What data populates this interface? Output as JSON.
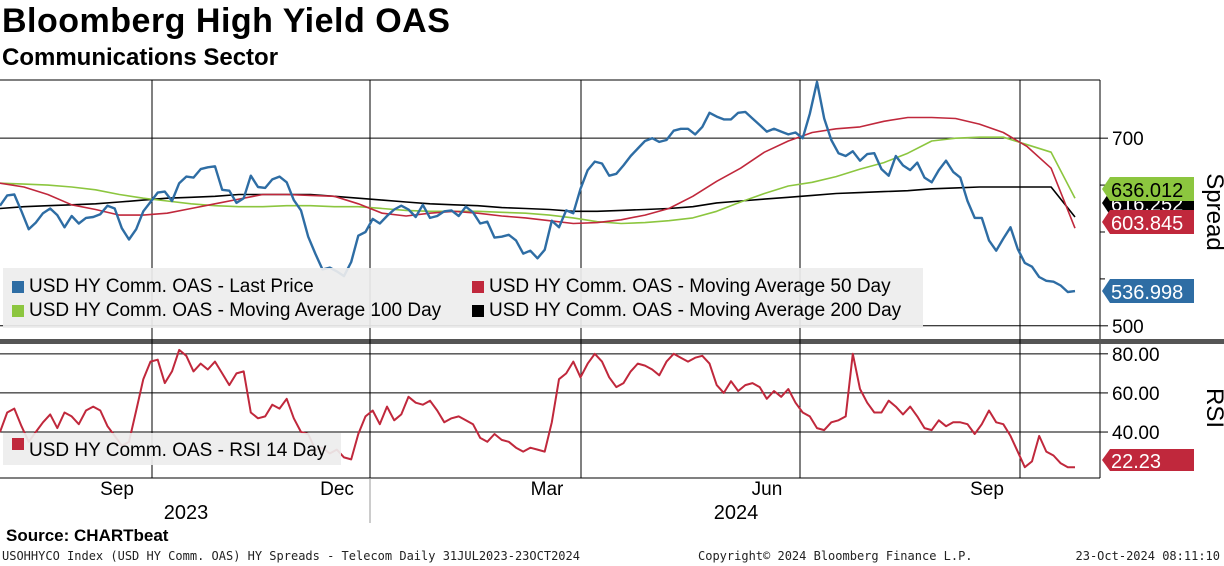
{
  "header": {
    "title": "Bloomberg High Yield OAS",
    "subtitle": "Communications Sector"
  },
  "footer": {
    "source": "Source: CHARTbeat",
    "ticker_line": "USOHHYCO Index (USD HY Comm. OAS) HY Spreads - Telecom  Daily 31JUL2023-23OCT2024",
    "copyright": "Copyright© 2024 Bloomberg Finance L.P.",
    "timestamp": "23-Oct-2024 08:11:10"
  },
  "colors": {
    "last_price": "#2e6da4",
    "ma50": "#c0283c",
    "ma100": "#8cc63f",
    "ma200": "#000000",
    "rsi": "#c0283c"
  },
  "chart_data": [
    {
      "type": "line",
      "panel": "Spread",
      "ylabel": "Spread",
      "ylim": [
        487,
        762
      ],
      "yticks": [
        500,
        700
      ],
      "ytick_labels": [
        "500",
        "700"
      ],
      "x_range": [
        "2023-07-31",
        "2024-10-23"
      ],
      "x_ticks": [
        "Sep",
        "Dec",
        "Mar",
        "Jun",
        "Sep"
      ],
      "year_labels": [
        "2023",
        "2024"
      ],
      "value_tags": [
        {
          "series": "ma100",
          "text": "636.012",
          "value": 636.012
        },
        {
          "series": "ma200",
          "text": "616.252",
          "value": 616.252
        },
        {
          "series": "ma50",
          "text": "603.845",
          "value": 603.845
        },
        {
          "series": "last_price",
          "text": "536.998",
          "value": 536.998
        }
      ],
      "legend": [
        {
          "series": "last_price",
          "label": "USD HY Comm. OAS - Last Price"
        },
        {
          "series": "ma50",
          "label": "USD HY Comm. OAS - Moving Average 50 Day"
        },
        {
          "series": "ma100",
          "label": "USD HY Comm. OAS - Moving Average 100 Day"
        },
        {
          "series": "ma200",
          "label": "USD HY Comm. OAS - Moving Average 200 Day"
        }
      ],
      "series": [
        {
          "name": "last_price",
          "x": [
            0,
            3,
            6,
            9,
            12,
            15,
            18,
            21,
            24,
            27,
            30,
            33,
            36,
            39,
            42,
            45,
            48,
            51,
            54,
            57,
            60,
            63,
            66,
            69,
            72,
            75,
            78,
            81,
            84,
            87,
            90,
            93,
            96,
            99,
            102,
            105,
            108,
            111,
            114,
            117,
            120,
            123,
            126,
            129,
            132,
            135,
            138,
            141,
            144,
            147,
            150,
            153,
            156,
            159,
            162,
            165,
            168,
            171,
            174,
            177,
            180,
            183,
            186,
            189,
            192,
            195,
            198,
            201,
            204,
            207,
            210,
            213,
            216,
            219,
            222,
            225,
            228,
            231,
            234,
            237,
            240,
            243,
            246,
            249,
            252,
            255,
            258,
            261,
            264,
            267,
            270,
            273,
            276,
            279,
            282,
            285,
            288,
            291,
            294,
            297,
            300,
            303,
            306,
            309,
            312,
            315,
            318,
            321,
            324,
            327,
            330,
            333,
            336,
            339,
            342,
            345,
            348,
            351,
            354,
            357,
            360,
            363,
            366,
            369,
            372,
            375,
            378,
            381,
            384,
            387,
            390,
            393,
            396,
            399,
            402,
            405,
            408,
            411,
            414,
            417,
            420,
            423,
            426,
            429,
            432,
            435,
            438,
            441,
            444,
            447,
            450
          ],
          "values": [
            628,
            639,
            640,
            622,
            603,
            610,
            620,
            625,
            618,
            605,
            617,
            609,
            615,
            616,
            619,
            628,
            625,
            604,
            592,
            603,
            622,
            632,
            642,
            643,
            633,
            652,
            659,
            658,
            667,
            669,
            670,
            645,
            644,
            631,
            636,
            660,
            648,
            647,
            656,
            659,
            653,
            634,
            623,
            595,
            577,
            560,
            562,
            558,
            553,
            568,
            596,
            600,
            614,
            609,
            617,
            624,
            628,
            624,
            616,
            629,
            615,
            617,
            622,
            623,
            617,
            627,
            621,
            609,
            611,
            594,
            595,
            597,
            591,
            577,
            580,
            572,
            581,
            612,
            605,
            623,
            620,
            646,
            666,
            675,
            673,
            660,
            662,
            671,
            681,
            689,
            697,
            700,
            696,
            698,
            708,
            710,
            710,
            704,
            712,
            727,
            723,
            720,
            720,
            727,
            728,
            721,
            714,
            707,
            710,
            707,
            704,
            706,
            700,
            726,
            760,
            721,
            698,
            684,
            681,
            686,
            676,
            683,
            684,
            667,
            660,
            681,
            671,
            666,
            674,
            658,
            653,
            666,
            676,
            664,
            658,
            633,
            615,
            615,
            591,
            580,
            593,
            605,
            582,
            567,
            563,
            552,
            548,
            547,
            543,
            536,
            537
          ]
        },
        {
          "name": "ma50",
          "x": [
            0,
            10,
            20,
            30,
            40,
            50,
            60,
            70,
            80,
            90,
            100,
            110,
            120,
            130,
            140,
            150,
            160,
            170,
            180,
            190,
            200,
            210,
            220,
            230,
            240,
            250,
            260,
            270,
            280,
            290,
            300,
            310,
            320,
            330,
            340,
            350,
            360,
            370,
            380,
            390,
            400,
            410,
            420,
            430,
            440,
            450
          ],
          "values": [
            652,
            648,
            640,
            629,
            624,
            618,
            618,
            620,
            625,
            630,
            635,
            640,
            640,
            639,
            638,
            630,
            620,
            617,
            620,
            622,
            620,
            617,
            615,
            612,
            609,
            610,
            613,
            618,
            625,
            638,
            654,
            668,
            685,
            697,
            706,
            710,
            712,
            718,
            722,
            722,
            721,
            715,
            706,
            691,
            668,
            604
          ]
        },
        {
          "name": "ma100",
          "x": [
            0,
            10,
            20,
            30,
            40,
            50,
            60,
            70,
            80,
            90,
            100,
            110,
            120,
            130,
            140,
            150,
            160,
            170,
            180,
            190,
            200,
            210,
            220,
            230,
            240,
            250,
            260,
            270,
            280,
            290,
            300,
            310,
            320,
            330,
            340,
            350,
            360,
            370,
            380,
            390,
            400,
            410,
            420,
            430,
            440,
            450
          ],
          "values": [
            652,
            651,
            650,
            648,
            645,
            640,
            636,
            633,
            630,
            628,
            627,
            627,
            628,
            628,
            627,
            627,
            625,
            623,
            622,
            622,
            622,
            621,
            620,
            618,
            615,
            611,
            609,
            610,
            612,
            615,
            622,
            632,
            641,
            649,
            653,
            659,
            667,
            674,
            684,
            697,
            700,
            701,
            701,
            693,
            685,
            636
          ]
        },
        {
          "name": "ma200",
          "x": [
            0,
            10,
            20,
            30,
            40,
            50,
            60,
            70,
            80,
            90,
            100,
            110,
            120,
            130,
            140,
            150,
            160,
            170,
            180,
            190,
            200,
            210,
            220,
            230,
            240,
            250,
            260,
            270,
            280,
            290,
            300,
            310,
            320,
            330,
            340,
            350,
            360,
            370,
            380,
            390,
            400,
            410,
            420,
            430,
            440,
            450
          ],
          "values": [
            625,
            627,
            628,
            629,
            630,
            632,
            634,
            636,
            637,
            638,
            640,
            640,
            640,
            640,
            638,
            636,
            634,
            632,
            630,
            629,
            628,
            626,
            625,
            624,
            622,
            622,
            623,
            624,
            625,
            627,
            631,
            633,
            635,
            637,
            639,
            641,
            642,
            643,
            644,
            646,
            647,
            648,
            648,
            648,
            648,
            616
          ]
        }
      ]
    },
    {
      "type": "line",
      "panel": "RSI",
      "ylabel": "RSI",
      "ylim": [
        17,
        84
      ],
      "yticks": [
        40,
        60,
        80
      ],
      "ytick_labels": [
        "40.00",
        "60.00",
        "80.00"
      ],
      "value_tags": [
        {
          "series": "rsi",
          "text": "22.23",
          "value": 22.23
        }
      ],
      "legend": [
        {
          "series": "rsi",
          "label": "USD HY Comm. OAS - RSI 14 Day"
        }
      ],
      "series": [
        {
          "name": "rsi",
          "x": [
            0,
            3,
            6,
            9,
            12,
            15,
            18,
            21,
            24,
            27,
            30,
            33,
            36,
            39,
            42,
            45,
            48,
            51,
            54,
            57,
            60,
            63,
            66,
            69,
            72,
            75,
            78,
            81,
            84,
            87,
            90,
            93,
            96,
            99,
            102,
            105,
            108,
            111,
            114,
            117,
            120,
            123,
            126,
            129,
            132,
            135,
            138,
            141,
            144,
            147,
            150,
            153,
            156,
            159,
            162,
            165,
            168,
            171,
            174,
            177,
            180,
            183,
            186,
            189,
            192,
            195,
            198,
            201,
            204,
            207,
            210,
            213,
            216,
            219,
            222,
            225,
            228,
            231,
            234,
            237,
            240,
            243,
            246,
            249,
            252,
            255,
            258,
            261,
            264,
            267,
            270,
            273,
            276,
            279,
            282,
            285,
            288,
            291,
            294,
            297,
            300,
            303,
            306,
            309,
            312,
            315,
            318,
            321,
            324,
            327,
            330,
            333,
            336,
            339,
            342,
            345,
            348,
            351,
            354,
            357,
            360,
            363,
            366,
            369,
            372,
            375,
            378,
            381,
            384,
            387,
            390,
            393,
            396,
            399,
            402,
            405,
            408,
            411,
            414,
            417,
            420,
            423,
            426,
            429,
            432,
            435,
            438,
            441,
            444,
            447,
            450
          ],
          "values": [
            40,
            50,
            52,
            43,
            35,
            40,
            45,
            49,
            42,
            50,
            48,
            44,
            51,
            53,
            51,
            43,
            38,
            33,
            35,
            51,
            67,
            76,
            77,
            65,
            71,
            82,
            79,
            71,
            75,
            72,
            76,
            70,
            64,
            70,
            71,
            50,
            47,
            48,
            54,
            52,
            57,
            47,
            40,
            39,
            31,
            32,
            29,
            31,
            27,
            26,
            39,
            48,
            51,
            44,
            53,
            46,
            49,
            58,
            55,
            54,
            56,
            51,
            45,
            47,
            48,
            46,
            44,
            37,
            35,
            39,
            36,
            35,
            32,
            30,
            32,
            31,
            30,
            45,
            67,
            70,
            76,
            68,
            75,
            80,
            76,
            68,
            63,
            65,
            71,
            75,
            74,
            72,
            69,
            76,
            80,
            78,
            76,
            78,
            79,
            75,
            64,
            60,
            66,
            61,
            64,
            65,
            63,
            57,
            61,
            58,
            62,
            55,
            50,
            48,
            42,
            41,
            45,
            46,
            48,
            80,
            62,
            55,
            50,
            50,
            56,
            53,
            49,
            53,
            48,
            42,
            41,
            46,
            43,
            45,
            45,
            44,
            39,
            44,
            51,
            45,
            44,
            38,
            30,
            22,
            25,
            38,
            30,
            28,
            24,
            22,
            22
          ]
        }
      ]
    }
  ]
}
